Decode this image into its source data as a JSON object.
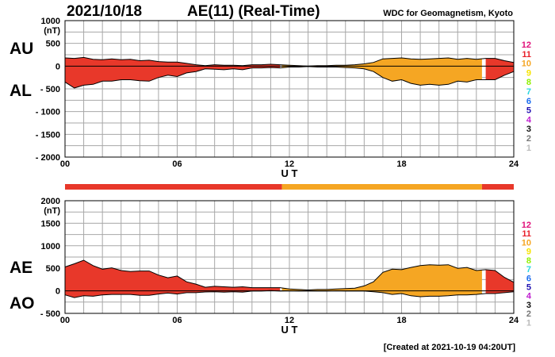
{
  "header": {
    "date": "2021/10/18",
    "title": "AE(11) (Real-Time)",
    "source": "WDC for Geomagnetism, Kyoto",
    "created": "[Created at 2021-10-19 04:20UT]"
  },
  "side_labels": {
    "au": "AU",
    "al": "AL",
    "ae": "AE",
    "ao": "AO"
  },
  "station_legend": {
    "items": [
      {
        "label": "12",
        "color": "#e0107a"
      },
      {
        "label": "11",
        "color": "#e8202a"
      },
      {
        "label": "10",
        "color": "#f5a623"
      },
      {
        "label": "9",
        "color": "#f7e300"
      },
      {
        "label": "8",
        "color": "#8ff000"
      },
      {
        "label": "7",
        "color": "#28d6e0"
      },
      {
        "label": "6",
        "color": "#1a6cf0"
      },
      {
        "label": "5",
        "color": "#2010b0"
      },
      {
        "label": "4",
        "color": "#c020d0"
      },
      {
        "label": "3",
        "color": "#111111"
      },
      {
        "label": "2",
        "color": "#777777"
      },
      {
        "label": "1",
        "color": "#bbbbbb"
      }
    ]
  },
  "status_bar": {
    "segments": [
      {
        "from": 0,
        "to": 11.6,
        "color": "#e8382a"
      },
      {
        "from": 11.6,
        "to": 22.3,
        "color": "#f5a623"
      },
      {
        "from": 22.3,
        "to": 24,
        "color": "#e8382a"
      }
    ]
  },
  "chart_data": [
    {
      "type": "area",
      "title": "AU / AL",
      "ylabel": "(nT)",
      "xlabel": "U T",
      "xlim": [
        0,
        24
      ],
      "ylim": [
        -2000,
        1000
      ],
      "xticks": [
        0,
        6,
        12,
        18,
        24
      ],
      "xtick_labels": [
        "00",
        "06",
        "12",
        "18",
        "24"
      ],
      "yticks": [
        1000,
        500,
        0,
        -500,
        -1000,
        -1500,
        -2000
      ],
      "ytick_labels": [
        "1000",
        "500",
        "0",
        "- 500",
        "- 1000",
        "- 1500",
        "- 2000"
      ],
      "grid": true,
      "x": [
        0,
        0.5,
        1,
        1.5,
        2,
        2.5,
        3,
        3.5,
        4,
        4.5,
        5,
        5.5,
        6,
        6.5,
        7,
        7.5,
        8,
        8.5,
        9,
        9.5,
        10,
        10.5,
        11,
        11.5,
        12,
        12.5,
        13,
        13.5,
        14,
        14.5,
        15,
        15.5,
        16,
        16.5,
        17,
        17.5,
        18,
        18.5,
        19,
        19.5,
        20,
        20.5,
        21,
        21.5,
        22,
        22.5,
        23,
        23.5,
        24
      ],
      "series": [
        {
          "name": "AU",
          "values": [
            180,
            170,
            190,
            150,
            140,
            160,
            140,
            150,
            120,
            130,
            100,
            90,
            90,
            60,
            30,
            10,
            30,
            20,
            20,
            10,
            30,
            30,
            40,
            30,
            20,
            10,
            0,
            10,
            10,
            20,
            20,
            30,
            50,
            80,
            160,
            170,
            180,
            160,
            150,
            160,
            170,
            180,
            150,
            170,
            150,
            170,
            170,
            120,
            80
          ]
        },
        {
          "name": "AL",
          "values": [
            -350,
            -480,
            -420,
            -400,
            -330,
            -330,
            -300,
            -300,
            -320,
            -330,
            -250,
            -200,
            -230,
            -150,
            -120,
            -60,
            -70,
            -80,
            -60,
            -80,
            -40,
            -40,
            -30,
            -40,
            -20,
            -20,
            -10,
            -20,
            -20,
            -20,
            -30,
            -40,
            -60,
            -120,
            -250,
            -330,
            -300,
            -380,
            -420,
            -400,
            -420,
            -400,
            -330,
            -350,
            -300,
            -300,
            -300,
            -200,
            -120
          ]
        }
      ]
    },
    {
      "type": "area",
      "title": "AE / AO",
      "ylabel": "(nT)",
      "xlabel": "U T",
      "xlim": [
        0,
        24
      ],
      "ylim": [
        -500,
        2000
      ],
      "xticks": [
        0,
        6,
        12,
        18,
        24
      ],
      "xtick_labels": [
        "00",
        "06",
        "12",
        "18",
        "24"
      ],
      "yticks": [
        2000,
        1500,
        1000,
        500,
        0,
        -500
      ],
      "ytick_labels": [
        "2000",
        "1500",
        "1000",
        "500",
        "0",
        "- 500"
      ],
      "grid": true,
      "x": [
        0,
        0.5,
        1,
        1.5,
        2,
        2.5,
        3,
        3.5,
        4,
        4.5,
        5,
        5.5,
        6,
        6.5,
        7,
        7.5,
        8,
        8.5,
        9,
        9.5,
        10,
        10.5,
        11,
        11.5,
        12,
        12.5,
        13,
        13.5,
        14,
        14.5,
        15,
        15.5,
        16,
        16.5,
        17,
        17.5,
        18,
        18.5,
        19,
        19.5,
        20,
        20.5,
        21,
        21.5,
        22,
        22.5,
        23,
        23.5,
        24
      ],
      "series": [
        {
          "name": "AE",
          "values": [
            530,
            600,
            680,
            560,
            480,
            510,
            450,
            430,
            440,
            440,
            350,
            290,
            330,
            200,
            150,
            80,
            100,
            90,
            80,
            90,
            70,
            70,
            70,
            70,
            40,
            30,
            20,
            30,
            30,
            40,
            50,
            60,
            110,
            200,
            410,
            480,
            470,
            520,
            560,
            580,
            570,
            580,
            500,
            520,
            450,
            470,
            450,
            300,
            190
          ]
        },
        {
          "name": "AO",
          "values": [
            -90,
            -150,
            -110,
            -120,
            -90,
            -80,
            -80,
            -80,
            -100,
            -100,
            -70,
            -50,
            -70,
            -40,
            -40,
            -25,
            -20,
            -30,
            -20,
            -30,
            -5,
            -5,
            5,
            -5,
            0,
            -5,
            -5,
            -5,
            -5,
            0,
            -5,
            -5,
            -5,
            -20,
            -40,
            -80,
            -60,
            -110,
            -130,
            -120,
            -120,
            -110,
            -90,
            -90,
            -80,
            -60,
            -60,
            -40,
            -20
          ]
        }
      ]
    }
  ]
}
